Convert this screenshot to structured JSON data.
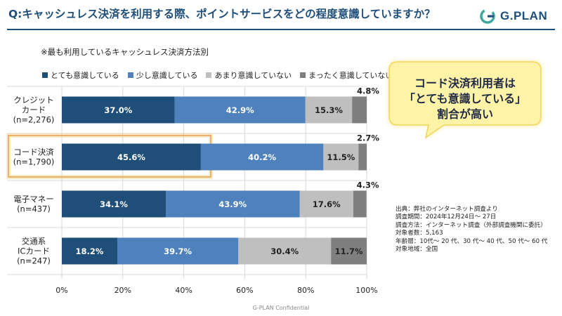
{
  "header": {
    "title": "Q:キャッシュレス決済を利用する際、ポイントサービスをどの程度意識していますか？",
    "logo_text": "G.PLAN"
  },
  "subtitle": "※最も利用しているキャッシュレス決済方法別",
  "callout": {
    "lines": [
      "コード決済利用者は",
      "「とても意識している」",
      "割合が高い"
    ]
  },
  "source_note": {
    "lines": [
      "出典：弊社のインターネット調査より",
      "調査期間：2024年12月24日～ 27日",
      "調査方法：インターネット調査（外部調査機関に委託）",
      "対象者数：5,163",
      "年齢層：10代～ 20 代、30 代～ 40 代、50 代～ 60 代",
      "対象地域：全国"
    ]
  },
  "footer": "G-PLAN Confidential",
  "colors": {
    "accent": "#1f4e79",
    "highlight_border": "#e8a04a"
  },
  "chart_data": {
    "type": "bar",
    "orientation": "horizontal",
    "stacked": true,
    "title": "※最も利用しているキャッシュレス決済方法別",
    "categories": [
      [
        "クレジット",
        "カード",
        "(n=2,276)"
      ],
      [
        "コード決済",
        "(n=1,790)"
      ],
      [
        "電子マネー",
        "(n=437)"
      ],
      [
        "交通系",
        "ICカード",
        "(n=247)"
      ]
    ],
    "highlighted_category": 1,
    "series": [
      {
        "name": "とても意識している",
        "values": [
          37.0,
          45.6,
          34.1,
          18.2
        ],
        "color": "#1f4e79",
        "label_color": "#ffffff"
      },
      {
        "name": "少し意識している",
        "values": [
          42.9,
          40.2,
          43.9,
          39.7
        ],
        "color": "#4f81bd",
        "label_color": "#ffffff"
      },
      {
        "name": "あまり意識していない",
        "values": [
          15.3,
          11.5,
          17.6,
          30.4
        ],
        "color": "#bfbfbf",
        "label_color": "#222222"
      },
      {
        "name": "まったく意識していない",
        "values": [
          4.8,
          2.7,
          4.3,
          11.7
        ],
        "color": "#7f7f7f",
        "label_color": "#222222"
      }
    ],
    "xlim": [
      0,
      100
    ],
    "xticks": [
      "0%",
      "20%",
      "40%",
      "60%",
      "80%",
      "100%"
    ],
    "legend_position": "top-left"
  }
}
